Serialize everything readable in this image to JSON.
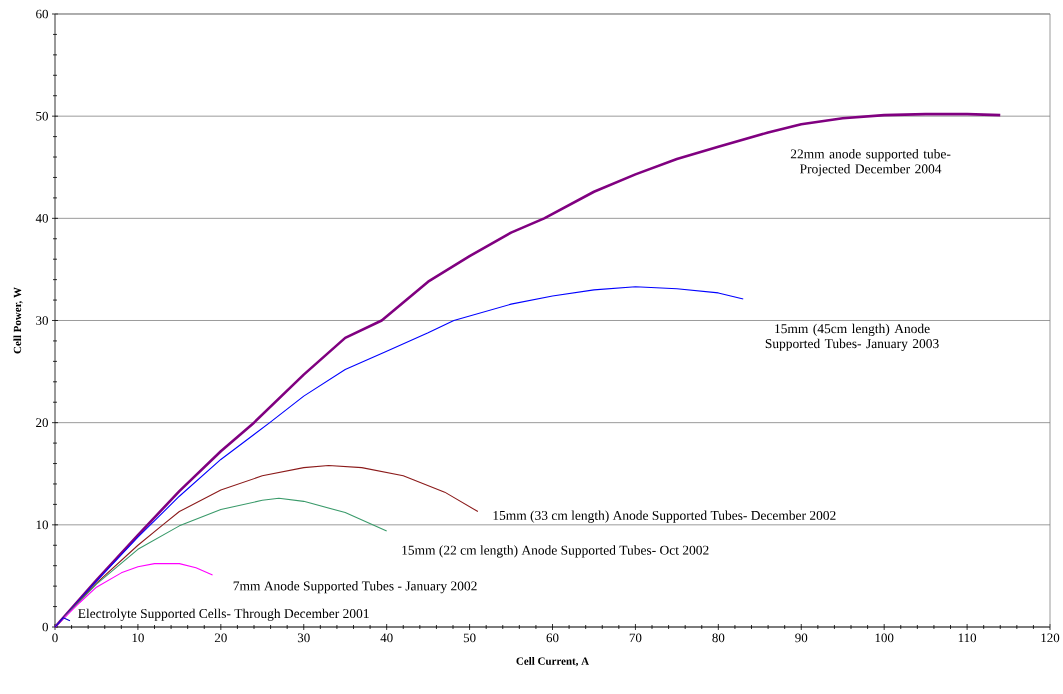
{
  "chart_data": {
    "type": "line",
    "xlabel": "Cell Current, A",
    "ylabel": "Cell Power, W",
    "xlim": [
      0,
      120
    ],
    "ylim": [
      0,
      60
    ],
    "xticks": [
      0,
      10,
      20,
      30,
      40,
      50,
      60,
      70,
      80,
      90,
      100,
      110,
      120
    ],
    "yticks": [
      0,
      10,
      20,
      30,
      40,
      50,
      60
    ],
    "grid": "y",
    "legend": false,
    "marker": "none",
    "line_style": "solid",
    "series": [
      {
        "name": "22mm anode supported tube- Projected December 2004",
        "color": "#800080",
        "x": [
          0,
          5,
          10,
          15,
          20,
          24,
          30,
          35,
          39.4,
          45,
          50,
          55,
          59,
          65,
          70,
          75,
          80,
          86,
          90,
          95,
          100,
          105,
          110,
          114
        ],
        "values": [
          0,
          4.6,
          9,
          13.3,
          17.2,
          20,
          24.7,
          28.3,
          30,
          33.8,
          36.3,
          38.6,
          40,
          42.6,
          44.3,
          45.8,
          47,
          48.4,
          49.2,
          49.8,
          50.1,
          50.2,
          50.2,
          50.1
        ]
      },
      {
        "name": "15mm (45cm length) Anode Supported Tubes- January 2003",
        "color": "#0000ff",
        "x": [
          0,
          5,
          10,
          15,
          20,
          25.9,
          30,
          35,
          40,
          45,
          48.1,
          55,
          60,
          65,
          70,
          75,
          80,
          83
        ],
        "values": [
          0,
          4.5,
          8.8,
          12.8,
          16.4,
          20,
          22.6,
          25.2,
          27,
          28.8,
          30,
          31.6,
          32.4,
          33,
          33.3,
          33.1,
          32.7,
          32.1
        ]
      },
      {
        "name": "15mm (33 cm length) Anode Supported Tubes- December 2002",
        "color": "#8b1a1a",
        "x": [
          0,
          5,
          10,
          13,
          15,
          20,
          25,
          30,
          33,
          37,
          42,
          47,
          51
        ],
        "values": [
          0,
          4.3,
          8,
          10,
          11.3,
          13.4,
          14.8,
          15.6,
          15.8,
          15.6,
          14.8,
          13.2,
          11.3
        ]
      },
      {
        "name": "15mm (22 cm length) Anode Supported Tubes- Oct 2002",
        "color": "#3a9a6a",
        "x": [
          0,
          5,
          10,
          15,
          20,
          25,
          27,
          30,
          35,
          40
        ],
        "values": [
          0,
          4.2,
          7.6,
          9.9,
          11.5,
          12.4,
          12.6,
          12.3,
          11.2,
          9.4
        ]
      },
      {
        "name": "7mm Anode Supported Tubes - January 2002",
        "color": "#ff00ff",
        "x": [
          0,
          3,
          5,
          8,
          10,
          12,
          15,
          17,
          19
        ],
        "values": [
          0,
          2.4,
          3.9,
          5.3,
          5.9,
          6.2,
          6.2,
          5.8,
          5.1
        ]
      },
      {
        "name": "Electrolyte Supported Cells- Through December 2001",
        "color": "#0000cc",
        "x": [
          0,
          1,
          1.8
        ],
        "values": [
          0,
          0.9,
          0.6
        ]
      }
    ]
  }
}
